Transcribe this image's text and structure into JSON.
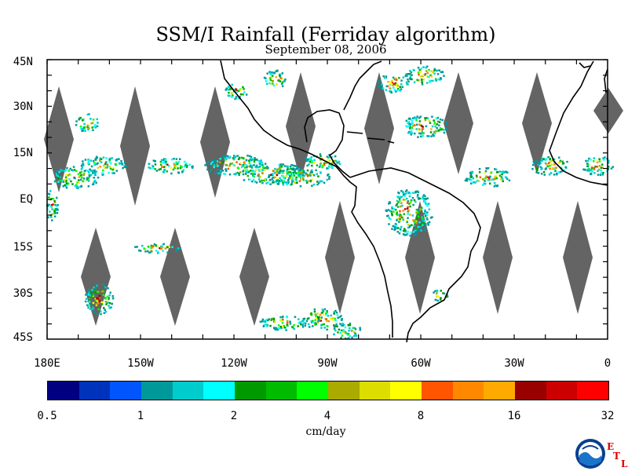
{
  "title": "SSM/I Rainfall (Ferriday algorithm)",
  "subtitle": "September 08, 2006",
  "map": {
    "lat_labels": [
      "45N",
      "30N",
      "15N",
      "EQ",
      "15S",
      "30S",
      "45S"
    ],
    "lon_labels": [
      "180E",
      "150W",
      "120W",
      "90W",
      "60W",
      "30W",
      "0"
    ],
    "land_color": "#ffffff",
    "coastline_color": "#000000",
    "missing_swath_color": "#646464"
  },
  "colorbar": {
    "colors": [
      "#000080",
      "#0033bb",
      "#0055ff",
      "#009999",
      "#00cccc",
      "#00ffff",
      "#009900",
      "#00bb00",
      "#00ff00",
      "#aaaa00",
      "#dddd00",
      "#ffff00",
      "#ff5500",
      "#ff8800",
      "#ffaa00",
      "#990000",
      "#cc0000",
      "#ff0000"
    ],
    "tick_labels": [
      "0.5",
      "1",
      "2",
      "4",
      "8",
      "16",
      "32"
    ],
    "unit": "cm/day"
  },
  "logo": {
    "name": "NOAA",
    "etl_letters": [
      "E",
      "T",
      "L"
    ]
  }
}
